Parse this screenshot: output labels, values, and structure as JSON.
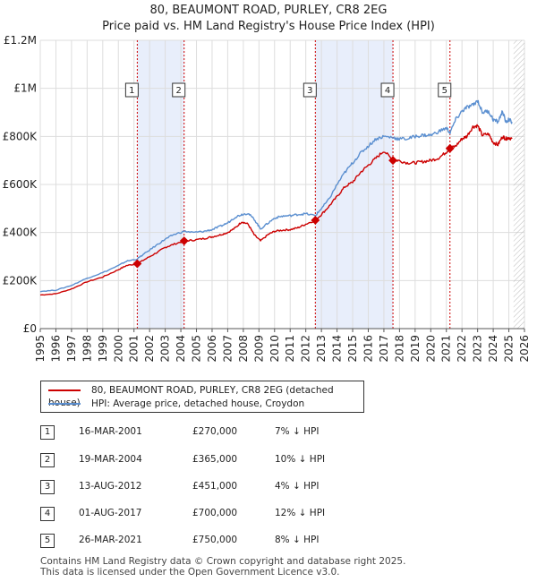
{
  "chart_data": {
    "type": "line",
    "title": "80, BEAUMONT ROAD, PURLEY, CR8 2EG",
    "subtitle": "Price paid vs. HM Land Registry's House Price Index (HPI)",
    "xlabel": "",
    "ylabel": "",
    "xlim": [
      1995,
      2026
    ],
    "ylim": [
      0,
      1200000
    ],
    "x_ticks": [
      "1995",
      "1996",
      "1997",
      "1998",
      "1999",
      "2000",
      "2001",
      "2002",
      "2003",
      "2004",
      "2005",
      "2006",
      "2007",
      "2008",
      "2009",
      "2010",
      "2011",
      "2012",
      "2013",
      "2014",
      "2015",
      "2016",
      "2017",
      "2018",
      "2019",
      "2020",
      "2021",
      "2022",
      "2023",
      "2024",
      "2025",
      "2026"
    ],
    "y_ticks": [
      {
        "value": 0,
        "label": "£0"
      },
      {
        "value": 200000,
        "label": "£200K"
      },
      {
        "value": 400000,
        "label": "£400K"
      },
      {
        "value": 600000,
        "label": "£600K"
      },
      {
        "value": 800000,
        "label": "£800K"
      },
      {
        "value": 1000000,
        "label": "£1M"
      },
      {
        "value": 1200000,
        "label": "£1.2M"
      }
    ],
    "grid": true,
    "colors": {
      "property": "#cc0000",
      "hpi": "#5b8fd0",
      "grid": "#dddddd",
      "shade": "#e8eefb",
      "event_line": "#cc0000",
      "forecast_hatch": "#bbbbbb"
    },
    "forecast_start": 2025.3,
    "series": [
      {
        "name": "80, BEAUMONT ROAD, PURLEY, CR8 2EG (detached house)",
        "key": "property",
        "x": [
          1995.0,
          1996.0,
          1997.0,
          1998.0,
          1999.0,
          2000.0,
          2000.5,
          2001.21,
          2001.8,
          2002.5,
          2003.0,
          2003.5,
          2004.21,
          2004.8,
          2005.5,
          2006.0,
          2006.5,
          2007.0,
          2007.5,
          2007.9,
          2008.3,
          2008.7,
          2009.1,
          2009.6,
          2010.0,
          2010.5,
          2011.0,
          2011.5,
          2012.0,
          2012.61,
          2013.0,
          2013.5,
          2014.0,
          2014.5,
          2015.0,
          2015.5,
          2016.0,
          2016.5,
          2017.0,
          2017.58,
          2017.9,
          2018.5,
          2019.0,
          2019.5,
          2020.0,
          2020.5,
          2021.0,
          2021.23,
          2021.6,
          2022.0,
          2022.3,
          2022.7,
          2023.0,
          2023.3,
          2023.7,
          2024.0,
          2024.3,
          2024.6,
          2024.8,
          2025.0,
          2025.2
        ],
        "y": [
          140000,
          145000,
          165000,
          195000,
          215000,
          245000,
          262000,
          270000,
          292000,
          318000,
          338000,
          350000,
          365000,
          368000,
          375000,
          382000,
          390000,
          400000,
          420000,
          445000,
          435000,
          390000,
          365000,
          392000,
          405000,
          410000,
          412000,
          420000,
          435000,
          451000,
          475000,
          510000,
          550000,
          590000,
          610000,
          650000,
          680000,
          710000,
          740000,
          700000,
          700000,
          690000,
          690000,
          695000,
          700000,
          710000,
          735000,
          750000,
          760000,
          790000,
          800000,
          840000,
          845000,
          805000,
          810000,
          775000,
          765000,
          800000,
          790000,
          795000,
          790000
        ]
      },
      {
        "name": "HPI: Average price, detached house, Croydon",
        "key": "hpi",
        "x": [
          1995.0,
          1996.0,
          1997.0,
          1998.0,
          1999.0,
          2000.0,
          2000.5,
          2001.21,
          2001.8,
          2002.5,
          2003.0,
          2003.5,
          2004.21,
          2004.8,
          2005.5,
          2006.0,
          2006.5,
          2007.0,
          2007.5,
          2007.9,
          2008.3,
          2008.7,
          2009.1,
          2009.6,
          2010.0,
          2010.5,
          2011.0,
          2011.5,
          2012.0,
          2012.61,
          2013.0,
          2013.5,
          2014.0,
          2014.5,
          2015.0,
          2015.5,
          2016.0,
          2016.5,
          2017.0,
          2017.58,
          2017.9,
          2018.5,
          2019.0,
          2019.5,
          2020.0,
          2020.5,
          2021.0,
          2021.23,
          2021.6,
          2022.0,
          2022.3,
          2022.7,
          2023.0,
          2023.3,
          2023.7,
          2024.0,
          2024.3,
          2024.6,
          2024.8,
          2025.0,
          2025.2
        ],
        "y": [
          155000,
          160000,
          180000,
          210000,
          233000,
          262000,
          280000,
          290000,
          318000,
          350000,
          372000,
          390000,
          405000,
          400000,
          405000,
          412000,
          425000,
          440000,
          465000,
          475000,
          480000,
          455000,
          415000,
          440000,
          460000,
          468000,
          470000,
          475000,
          478000,
          470000,
          500000,
          540000,
          600000,
          650000,
          690000,
          730000,
          760000,
          790000,
          800000,
          795000,
          790000,
          790000,
          800000,
          805000,
          805000,
          820000,
          835000,
          815000,
          870000,
          905000,
          920000,
          930000,
          950000,
          900000,
          905000,
          870000,
          860000,
          905000,
          860000,
          870000,
          860000
        ]
      }
    ],
    "events": [
      {
        "num": "1",
        "x": 2001.21,
        "price": 270000,
        "date": "16-MAR-2001",
        "price_label": "£270,000",
        "hpi_label": "7% ↓ HPI"
      },
      {
        "num": "2",
        "x": 2004.21,
        "price": 365000,
        "date": "19-MAR-2004",
        "price_label": "£365,000",
        "hpi_label": "10% ↓ HPI"
      },
      {
        "num": "3",
        "x": 2012.61,
        "price": 451000,
        "date": "13-AUG-2012",
        "price_label": "£451,000",
        "hpi_label": "4% ↓ HPI"
      },
      {
        "num": "4",
        "x": 2017.58,
        "price": 700000,
        "date": "01-AUG-2017",
        "price_label": "£700,000",
        "hpi_label": "12% ↓ HPI"
      },
      {
        "num": "5",
        "x": 2021.23,
        "price": 750000,
        "date": "26-MAR-2021",
        "price_label": "£750,000",
        "hpi_label": "8% ↓ HPI"
      }
    ],
    "shaded_ranges": [
      [
        2001.21,
        2004.21
      ],
      [
        2012.61,
        2017.58
      ]
    ]
  },
  "legend": {
    "property_label": "80, BEAUMONT ROAD, PURLEY, CR8 2EG (detached house)",
    "hpi_label": "HPI: Average price, detached house, Croydon"
  },
  "footer": {
    "line1": "Contains HM Land Registry data © Crown copyright and database right 2025.",
    "line2": "This data is licensed under the Open Government Licence v3.0."
  }
}
